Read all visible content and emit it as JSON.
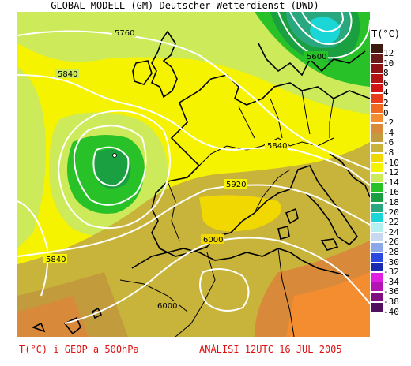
{
  "header": {
    "title": "GLOBAL MODELL (GM)—Deutscher Wetterdienst (DWD)"
  },
  "legend": {
    "unit": "T(°C)",
    "entries": [
      {
        "label": "12",
        "color": "#3d1a10"
      },
      {
        "label": "10",
        "color": "#6b1a1a"
      },
      {
        "label": "8",
        "color": "#8e1414"
      },
      {
        "label": "6",
        "color": "#b31414"
      },
      {
        "label": "4",
        "color": "#d41414"
      },
      {
        "label": "2",
        "color": "#e83c1a"
      },
      {
        "label": "0",
        "color": "#f06a22"
      },
      {
        "label": "-2",
        "color": "#f48c30"
      },
      {
        "label": "-4",
        "color": "#d88a3a"
      },
      {
        "label": "-6",
        "color": "#c29b3d"
      },
      {
        "label": "-8",
        "color": "#c8b43a"
      },
      {
        "label": "-10",
        "color": "#f0d800"
      },
      {
        "label": "-12",
        "color": "#f6f300"
      },
      {
        "label": "-14",
        "color": "#cdea5a"
      },
      {
        "label": "-16",
        "color": "#28c228"
      },
      {
        "label": "-18",
        "color": "#1aa040"
      },
      {
        "label": "-20",
        "color": "#29a880"
      },
      {
        "label": "-22",
        "color": "#1ad6d6"
      },
      {
        "label": "-24",
        "color": "#b4f0f0"
      },
      {
        "label": "-26",
        "color": "#c8d8f0"
      },
      {
        "label": "-28",
        "color": "#8ca8e8"
      },
      {
        "label": "-30",
        "color": "#2848e0"
      },
      {
        "label": "-32",
        "color": "#1a2ab0"
      },
      {
        "label": "-34",
        "color": "#e020e0"
      },
      {
        "label": "-36",
        "color": "#b414b4"
      },
      {
        "label": "-38",
        "color": "#801080"
      },
      {
        "label": "-40",
        "color": "#501060"
      }
    ]
  },
  "contours": {
    "labels": [
      "5760",
      "5840",
      "5600",
      "5840",
      "5920",
      "6000",
      "5840",
      "6000"
    ]
  },
  "footer": {
    "left": "T(°C) i GEOP a 500hPa",
    "right": "ANÀLISI 12UTC 16 JUL 2005"
  }
}
